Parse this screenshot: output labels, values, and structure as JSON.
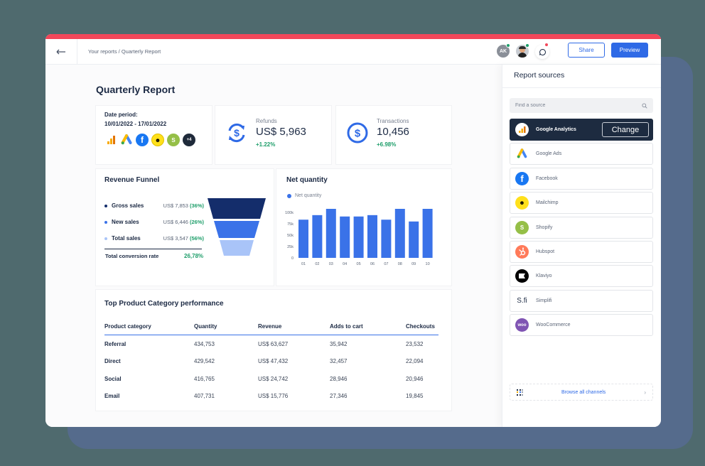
{
  "header": {
    "breadcrumb": "Your reports / Quarterly Report",
    "back_icon": "arrow-left-icon",
    "avatars": [
      {
        "initials": "AK",
        "status_color": "#1e9e6a"
      },
      {
        "initials": "",
        "status_color": "#1e9e6a"
      }
    ],
    "chat_status_color": "#f2475a",
    "share_label": "Share",
    "preview_label": "Preview"
  },
  "page": {
    "title": "Quarterly Report"
  },
  "date_card": {
    "label": "Date period:",
    "value": "10/01/2022 - 17/01/2022",
    "sources": [
      "google-analytics",
      "google-ads",
      "facebook",
      "mailchimp",
      "shopify"
    ],
    "more_label": "+4"
  },
  "kpis": [
    {
      "label": "Refunds",
      "value": "US$ 5,963",
      "delta": "+1.22%",
      "icon": "refund-cycle-icon"
    },
    {
      "label": "Transactions",
      "value": "10,456",
      "delta": "+6.98%",
      "icon": "dollar-circle-icon"
    }
  ],
  "funnel": {
    "title": "Revenue Funnel",
    "rows": [
      {
        "name": "Gross sales",
        "amount": "US$ 7,853",
        "pct": "(36%)",
        "color": "#142d6b"
      },
      {
        "name": "New sales",
        "amount": "US$ 6,446",
        "pct": "(26%)",
        "color": "#3a72e8"
      },
      {
        "name": "Total sales",
        "amount": "US$ 3,547",
        "pct": "(56%)",
        "color": "#a9c4f8"
      }
    ],
    "conversion_label": "Total conversion rate",
    "conversion_value": "26,78%"
  },
  "net_quantity": {
    "title": "Net quantity",
    "legend": "Net quantity"
  },
  "chart_data": {
    "type": "bar",
    "title": "Net quantity",
    "categories": [
      "01",
      "02",
      "03",
      "04",
      "05",
      "06",
      "07",
      "08",
      "09",
      "10"
    ],
    "series": [
      {
        "name": "Net quantity",
        "values": [
          84000,
          94000,
          111000,
          91000,
          91000,
          94000,
          84000,
          108000,
          80000,
          108000
        ],
        "color": "#3a72e8"
      }
    ],
    "yticks": [
      "0",
      "25k",
      "50k",
      "75k",
      "100k"
    ],
    "ylim": [
      0,
      115000
    ],
    "xlabel": "",
    "ylabel": "",
    "legend_position": "top-left",
    "grid": false
  },
  "table": {
    "title": "Top Product Category performance",
    "columns": [
      "Product category",
      "Quantity",
      "Revenue",
      "Adds to cart",
      "Checkouts"
    ],
    "rows": [
      [
        "Referral",
        "434,753",
        "US$ 63,627",
        "35,942",
        "23,532"
      ],
      [
        "Direct",
        "429,542",
        "US$ 47,432",
        "32,457",
        "22,094"
      ],
      [
        "Social",
        "416,765",
        "US$ 24,742",
        "28,946",
        "20,946"
      ],
      [
        "Email",
        "407,731",
        "US$ 15,776",
        "27,346",
        "19,845"
      ]
    ]
  },
  "sidebar": {
    "title": "Report sources",
    "search_placeholder": "Find a source",
    "sources": [
      {
        "name": "Google Analytics",
        "active": true,
        "icon_bg": "#ffffff"
      },
      {
        "name": "Google Ads",
        "icon_bg": "#ffffff"
      },
      {
        "name": "Facebook",
        "icon_bg": "#1877f2"
      },
      {
        "name": "Mailchimp",
        "icon_bg": "#ffe01b"
      },
      {
        "name": "Shopify",
        "icon_bg": "#95bf47"
      },
      {
        "name": "Hubspot",
        "icon_bg": "#ff7a59"
      },
      {
        "name": "Klaviyo",
        "icon_bg": "#000000"
      },
      {
        "name": "Simplifi",
        "icon_bg": "#ffffff"
      },
      {
        "name": "WooCommerce",
        "icon_bg": "#7f54b3"
      }
    ],
    "change_label": "Change",
    "browse_label": "Browse all channels"
  },
  "colors": {
    "accent": "#2f6ae6",
    "top_stripe": "#f2475a",
    "positive": "#1e9e6a",
    "background": "#4f6a6e",
    "shadow_panel": "#556b8c",
    "dark_navy": "#1d2b40"
  }
}
